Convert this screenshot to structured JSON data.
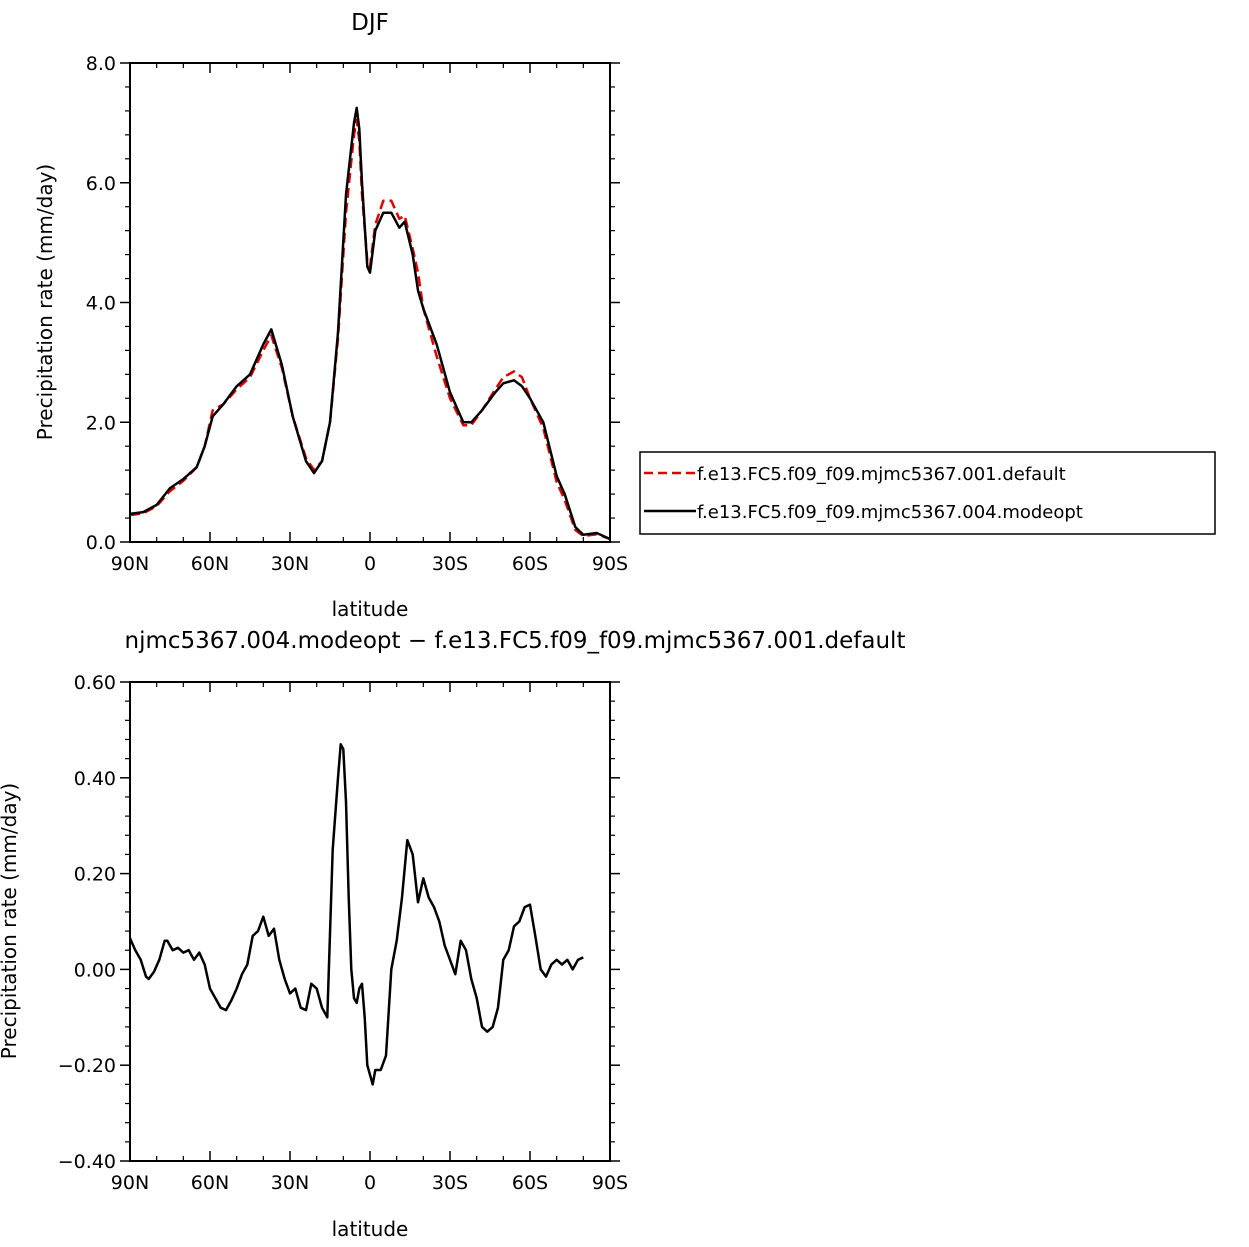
{
  "chart_data": [
    {
      "type": "line",
      "title": "DJF",
      "xlabel": "latitude",
      "ylabel": "Precipitation rate (mm/day)",
      "xlim": [
        90,
        -90
      ],
      "ylim": [
        0,
        8
      ],
      "xticks": [
        90,
        60,
        30,
        0,
        -30,
        -60,
        -90
      ],
      "xtick_labels": [
        "90N",
        "60N",
        "30N",
        "0",
        "30S",
        "60S",
        "90S"
      ],
      "yticks": [
        0,
        2,
        4,
        6,
        8
      ],
      "ytick_labels": [
        "0.0",
        "2.0",
        "4.0",
        "6.0",
        "8.0"
      ],
      "legend_position": "right",
      "series": [
        {
          "name": "f.e13.FC5.f09_f09.mjmc5367.001.default",
          "color": "#e00000",
          "dash": true,
          "points": [
            [
              90,
              0.45
            ],
            [
              85,
              0.48
            ],
            [
              80,
              0.6
            ],
            [
              75,
              0.85
            ],
            [
              70,
              1.02
            ],
            [
              65,
              1.25
            ],
            [
              62,
              1.6
            ],
            [
              59,
              2.2
            ],
            [
              55,
              2.3
            ],
            [
              50,
              2.55
            ],
            [
              45,
              2.75
            ],
            [
              40,
              3.2
            ],
            [
              37,
              3.45
            ],
            [
              33,
              2.9
            ],
            [
              29,
              2.1
            ],
            [
              24,
              1.4
            ],
            [
              21,
              1.2
            ],
            [
              18,
              1.35
            ],
            [
              15,
              2.0
            ],
            [
              12,
              3.4
            ],
            [
              9,
              5.5
            ],
            [
              6,
              6.8
            ],
            [
              5,
              7.05
            ],
            [
              4,
              6.7
            ],
            [
              3,
              5.8
            ],
            [
              1,
              4.7
            ],
            [
              0,
              4.6
            ],
            [
              -2,
              5.3
            ],
            [
              -5,
              5.7
            ],
            [
              -8,
              5.7
            ],
            [
              -11,
              5.4
            ],
            [
              -13,
              5.45
            ],
            [
              -16,
              4.9
            ],
            [
              -18,
              4.5
            ],
            [
              -20,
              3.9
            ],
            [
              -25,
              3.1
            ],
            [
              -30,
              2.4
            ],
            [
              -35,
              1.95
            ],
            [
              -38,
              1.95
            ],
            [
              -42,
              2.2
            ],
            [
              -47,
              2.55
            ],
            [
              -50,
              2.75
            ],
            [
              -54,
              2.85
            ],
            [
              -57,
              2.75
            ],
            [
              -60,
              2.4
            ],
            [
              -65,
              1.9
            ],
            [
              -70,
              1.0
            ],
            [
              -73,
              0.7
            ],
            [
              -77,
              0.2
            ],
            [
              -80,
              0.1
            ],
            [
              -85,
              0.13
            ],
            [
              -90,
              0.05
            ]
          ]
        },
        {
          "name": "f.e13.FC5.f09_f09.mjmc5367.004.modeopt",
          "color": "#000000",
          "dash": false,
          "points": [
            [
              90,
              0.47
            ],
            [
              85,
              0.5
            ],
            [
              80,
              0.62
            ],
            [
              75,
              0.9
            ],
            [
              70,
              1.05
            ],
            [
              65,
              1.25
            ],
            [
              62,
              1.6
            ],
            [
              59,
              2.1
            ],
            [
              55,
              2.3
            ],
            [
              50,
              2.6
            ],
            [
              45,
              2.8
            ],
            [
              40,
              3.3
            ],
            [
              37,
              3.55
            ],
            [
              33,
              2.95
            ],
            [
              29,
              2.1
            ],
            [
              24,
              1.35
            ],
            [
              21,
              1.15
            ],
            [
              18,
              1.35
            ],
            [
              15,
              2.0
            ],
            [
              12,
              3.5
            ],
            [
              9,
              5.8
            ],
            [
              6,
              7.0
            ],
            [
              5,
              7.25
            ],
            [
              4,
              6.9
            ],
            [
              3,
              6.0
            ],
            [
              1,
              4.6
            ],
            [
              0,
              4.5
            ],
            [
              -2,
              5.2
            ],
            [
              -5,
              5.5
            ],
            [
              -8,
              5.5
            ],
            [
              -11,
              5.25
            ],
            [
              -13,
              5.35
            ],
            [
              -16,
              4.8
            ],
            [
              -18,
              4.2
            ],
            [
              -20,
              3.9
            ],
            [
              -25,
              3.3
            ],
            [
              -30,
              2.5
            ],
            [
              -35,
              2.0
            ],
            [
              -38,
              2.0
            ],
            [
              -42,
              2.2
            ],
            [
              -47,
              2.5
            ],
            [
              -50,
              2.65
            ],
            [
              -54,
              2.7
            ],
            [
              -57,
              2.6
            ],
            [
              -60,
              2.4
            ],
            [
              -65,
              2.0
            ],
            [
              -70,
              1.1
            ],
            [
              -73,
              0.8
            ],
            [
              -77,
              0.25
            ],
            [
              -80,
              0.12
            ],
            [
              -85,
              0.15
            ],
            [
              -90,
              0.05
            ]
          ]
        }
      ]
    },
    {
      "type": "line",
      "title": "njmc5367.004.modeopt − f.e13.FC5.f09_f09.mjmc5367.001.default",
      "xlabel": "latitude",
      "ylabel": "Precipitation rate (mm/day)",
      "xlim": [
        90,
        -90
      ],
      "ylim": [
        -0.4,
        0.6
      ],
      "xticks": [
        90,
        60,
        30,
        0,
        -30,
        -60,
        -90
      ],
      "xtick_labels": [
        "90N",
        "60N",
        "30N",
        "0",
        "30S",
        "60S",
        "90S"
      ],
      "yticks": [
        -0.4,
        -0.2,
        0,
        0.2,
        0.4,
        0.6
      ],
      "ytick_labels": [
        "−0.40",
        "−0.20",
        "0.00",
        "0.20",
        "0.40",
        "0.60"
      ],
      "series": [
        {
          "name": "",
          "color": "#000000",
          "dash": false,
          "points": [
            [
              90,
              0.065
            ],
            [
              88,
              0.04
            ],
            [
              86,
              0.02
            ],
            [
              84,
              -0.015
            ],
            [
              83,
              -0.02
            ],
            [
              81,
              -0.005
            ],
            [
              79,
              0.02
            ],
            [
              77,
              0.06
            ],
            [
              76,
              0.06
            ],
            [
              74,
              0.04
            ],
            [
              72,
              0.045
            ],
            [
              70,
              0.035
            ],
            [
              68,
              0.04
            ],
            [
              66,
              0.02
            ],
            [
              64,
              0.035
            ],
            [
              62,
              0.01
            ],
            [
              60,
              -0.04
            ],
            [
              58,
              -0.06
            ],
            [
              56,
              -0.08
            ],
            [
              54,
              -0.085
            ],
            [
              52,
              -0.065
            ],
            [
              50,
              -0.04
            ],
            [
              48,
              -0.01
            ],
            [
              46,
              0.01
            ],
            [
              44,
              0.07
            ],
            [
              42,
              0.08
            ],
            [
              40,
              0.11
            ],
            [
              38,
              0.07
            ],
            [
              36,
              0.085
            ],
            [
              34,
              0.02
            ],
            [
              32,
              -0.02
            ],
            [
              30,
              -0.05
            ],
            [
              28,
              -0.04
            ],
            [
              26,
              -0.08
            ],
            [
              24,
              -0.085
            ],
            [
              22,
              -0.03
            ],
            [
              20,
              -0.04
            ],
            [
              18,
              -0.08
            ],
            [
              16,
              -0.1
            ],
            [
              14,
              0.25
            ],
            [
              12,
              0.4
            ],
            [
              11,
              0.47
            ],
            [
              10,
              0.46
            ],
            [
              9,
              0.35
            ],
            [
              8,
              0.15
            ],
            [
              7,
              0.0
            ],
            [
              6,
              -0.06
            ],
            [
              5,
              -0.07
            ],
            [
              4,
              -0.04
            ],
            [
              3,
              -0.03
            ],
            [
              2,
              -0.1
            ],
            [
              1,
              -0.2
            ],
            [
              0,
              -0.22
            ],
            [
              -1,
              -0.24
            ],
            [
              -2,
              -0.21
            ],
            [
              -4,
              -0.21
            ],
            [
              -6,
              -0.18
            ],
            [
              -8,
              0.0
            ],
            [
              -10,
              0.06
            ],
            [
              -12,
              0.15
            ],
            [
              -14,
              0.27
            ],
            [
              -16,
              0.24
            ],
            [
              -18,
              0.14
            ],
            [
              -20,
              0.19
            ],
            [
              -22,
              0.15
            ],
            [
              -24,
              0.13
            ],
            [
              -26,
              0.1
            ],
            [
              -28,
              0.05
            ],
            [
              -30,
              0.02
            ],
            [
              -32,
              -0.01
            ],
            [
              -34,
              0.06
            ],
            [
              -36,
              0.04
            ],
            [
              -38,
              -0.02
            ],
            [
              -40,
              -0.06
            ],
            [
              -42,
              -0.12
            ],
            [
              -44,
              -0.13
            ],
            [
              -46,
              -0.12
            ],
            [
              -48,
              -0.08
            ],
            [
              -50,
              0.02
            ],
            [
              -52,
              0.04
            ],
            [
              -54,
              0.09
            ],
            [
              -56,
              0.1
            ],
            [
              -58,
              0.13
            ],
            [
              -60,
              0.135
            ],
            [
              -62,
              0.07
            ],
            [
              -64,
              0.0
            ],
            [
              -66,
              -0.015
            ],
            [
              -68,
              0.01
            ],
            [
              -70,
              0.02
            ],
            [
              -72,
              0.01
            ],
            [
              -74,
              0.02
            ],
            [
              -76,
              0.0
            ],
            [
              -78,
              0.02
            ],
            [
              -80,
              0.025
            ]
          ]
        }
      ]
    }
  ]
}
